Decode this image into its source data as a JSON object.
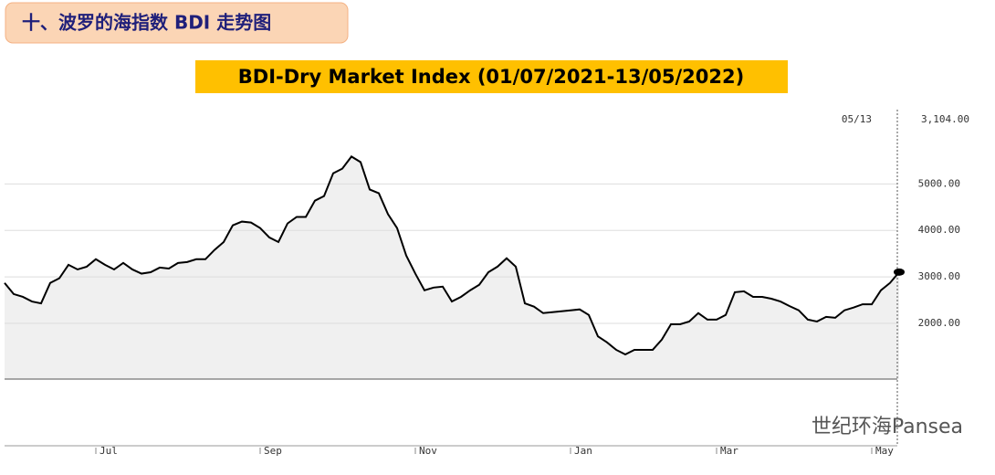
{
  "header": "十、波罗的海指数 BDI 走势图",
  "watermark": "世纪环海Pansea",
  "chart_data": {
    "type": "line",
    "title": "BDI-Dry Market Index (01/07/2021-13/05/2022)",
    "categories": [
      null,
      null,
      null,
      null,
      null,
      null,
      null,
      null,
      null,
      null,
      "Jul",
      null,
      null,
      null,
      null,
      null,
      null,
      null,
      null,
      null,
      null,
      null,
      null,
      null,
      null,
      null,
      null,
      null,
      "Sep",
      null,
      null,
      null,
      null,
      null,
      null,
      null,
      null,
      null,
      null,
      null,
      null,
      null,
      null,
      null,
      null,
      "Nov",
      null,
      null,
      null,
      null,
      null,
      null,
      null,
      null,
      null,
      null,
      null,
      null,
      null,
      null,
      null,
      null,
      "Jan",
      null,
      null,
      null,
      null,
      null,
      null,
      null,
      null,
      null,
      null,
      null,
      null,
      null,
      null,
      null,
      "Mar",
      null,
      null,
      null,
      null,
      null,
      null,
      null,
      null,
      null,
      null,
      null,
      null,
      null,
      null,
      null,
      null,
      "May",
      null,
      null,
      null
    ],
    "series": [
      {
        "color": "#000000",
        "values": [
          2870,
          2630,
          2570,
          2470,
          2430,
          2870,
          2970,
          3260,
          3160,
          3220,
          3380,
          3260,
          3160,
          3300,
          3160,
          3070,
          3100,
          3200,
          3180,
          3300,
          3320,
          3380,
          3380,
          3580,
          3750,
          4110,
          4190,
          4170,
          4050,
          3850,
          3750,
          4150,
          4290,
          4290,
          4640,
          4740,
          5230,
          5330,
          5590,
          5470,
          4880,
          4800,
          4350,
          4050,
          3460,
          3070,
          2710,
          2770,
          2790,
          2470,
          2570,
          2710,
          2830,
          3100,
          3220,
          3400,
          3220,
          2430,
          2360,
          2220,
          2240,
          2260,
          2280,
          2300,
          2180,
          1720,
          1590,
          1430,
          1330,
          1430,
          1430,
          1430,
          1650,
          1980,
          1980,
          2040,
          2220,
          2080,
          2080,
          2180,
          2670,
          2690,
          2570,
          2570,
          2530,
          2470,
          2370,
          2280,
          2080,
          2040,
          2140,
          2120,
          2280,
          2340,
          2410,
          2410,
          2710,
          2870,
          3104
        ]
      }
    ],
    "last_point_date": "05/13",
    "last_point_label": "3,104.00",
    "ylim": [
      800,
      6600
    ],
    "yticks": [
      {
        "value": 2000,
        "label": "2000.00"
      },
      {
        "value": 3000,
        "label": "3000.00"
      },
      {
        "value": 4000,
        "label": "4000.00"
      },
      {
        "value": 5000,
        "label": "5000.00"
      }
    ],
    "grid": true
  }
}
